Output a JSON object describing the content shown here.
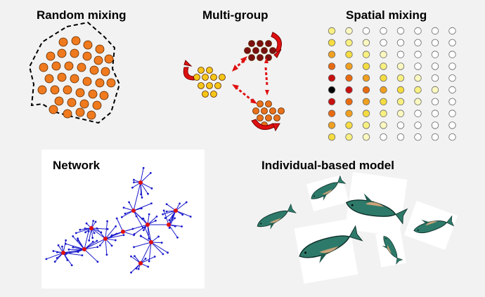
{
  "panels": {
    "random_mixing": {
      "title": "Random mixing"
    },
    "multi_group": {
      "title": "Multi-group"
    },
    "spatial_mixing": {
      "title": "Spatial mixing",
      "grid_rows": 10,
      "grid_cols": 8
    },
    "network": {
      "title": "Network"
    },
    "individual_based": {
      "title": "Individual-based model",
      "whale_count": 6
    }
  },
  "colors": {
    "background": "#f2f2f2",
    "orange_dot": "#f07a1e",
    "dark_red_dot": "#7a1010",
    "yellow_dot": "#f5c518",
    "mid_orange_dot": "#e8701a",
    "arrow_red": "#e01010",
    "network_edge": "#1a1acc",
    "network_node": "#e01010",
    "whale": "#2e7a6a"
  },
  "icons": [
    "circular-arrow-icon",
    "double-arrow-icon",
    "whale-icon"
  ]
}
